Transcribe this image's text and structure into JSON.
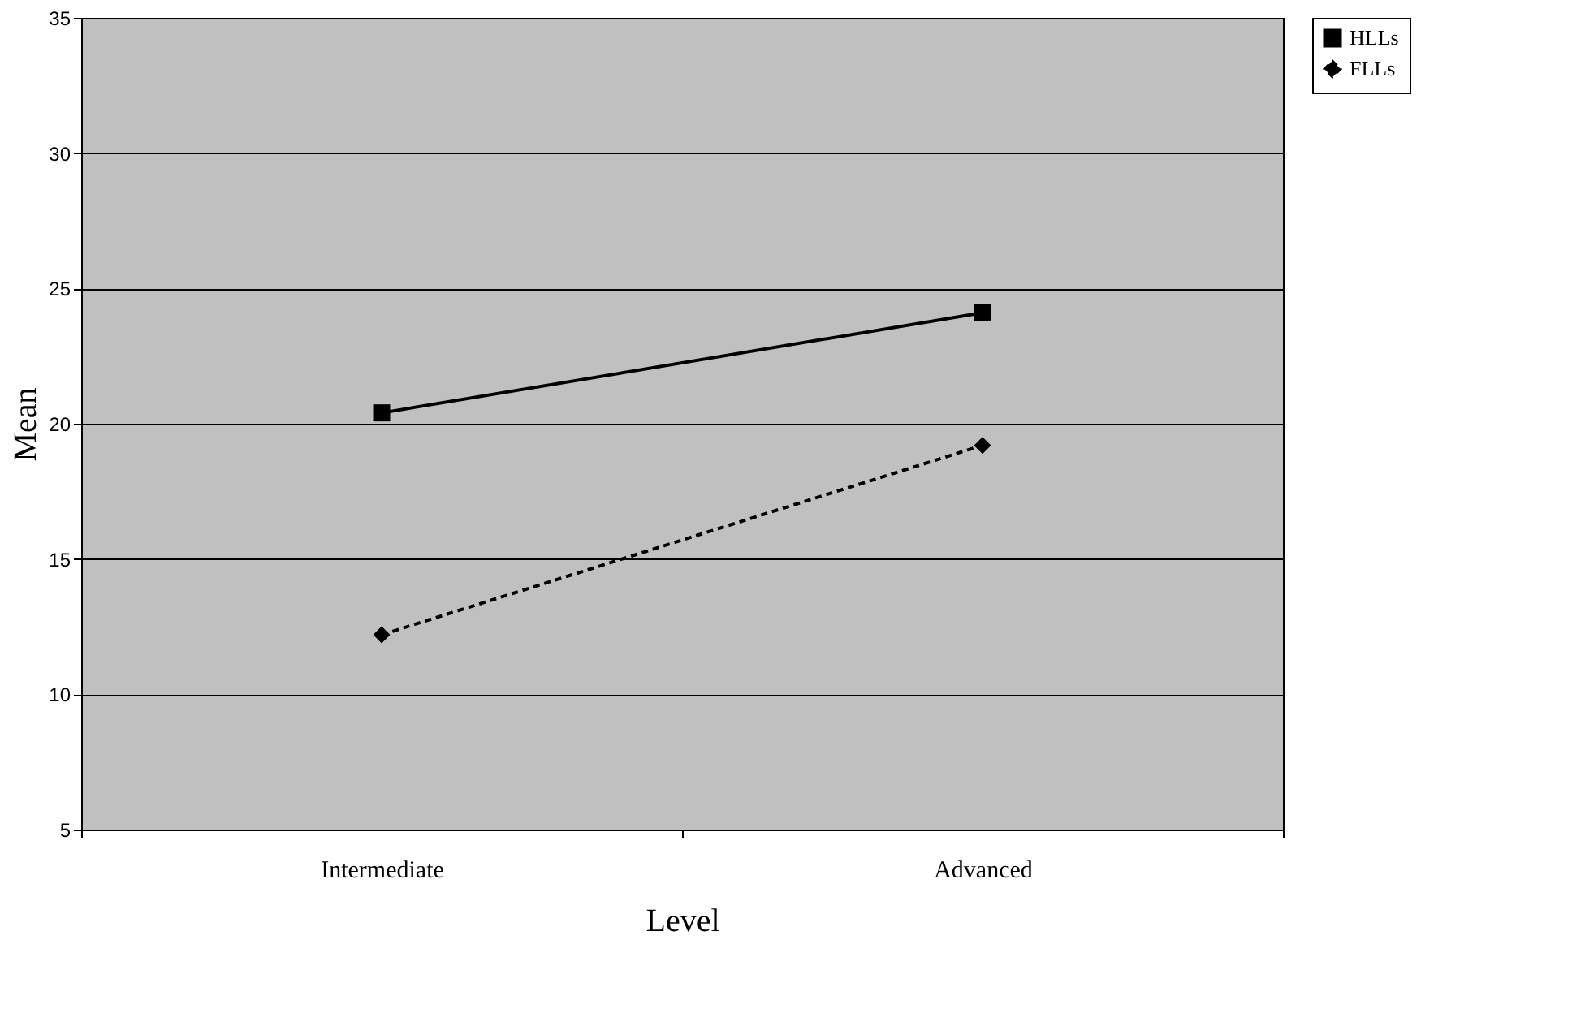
{
  "chart_data": {
    "type": "line",
    "xlabel": "Level",
    "ylabel": "Mean",
    "categories": [
      "Intermediate",
      "Advanced"
    ],
    "series": [
      {
        "name": "HLLs",
        "color": "#000000",
        "values": [
          20.4,
          24.1
        ],
        "marker": "square",
        "line_style": "solid"
      },
      {
        "name": "FLLs",
        "color": "#000000",
        "values": [
          12.2,
          19.2
        ],
        "marker": "diamond",
        "line_style": "dashed"
      }
    ],
    "ylim": [
      5,
      35
    ],
    "yticks": [
      5,
      10,
      15,
      20,
      25,
      30,
      35
    ],
    "grid": "y",
    "legend": "right"
  }
}
